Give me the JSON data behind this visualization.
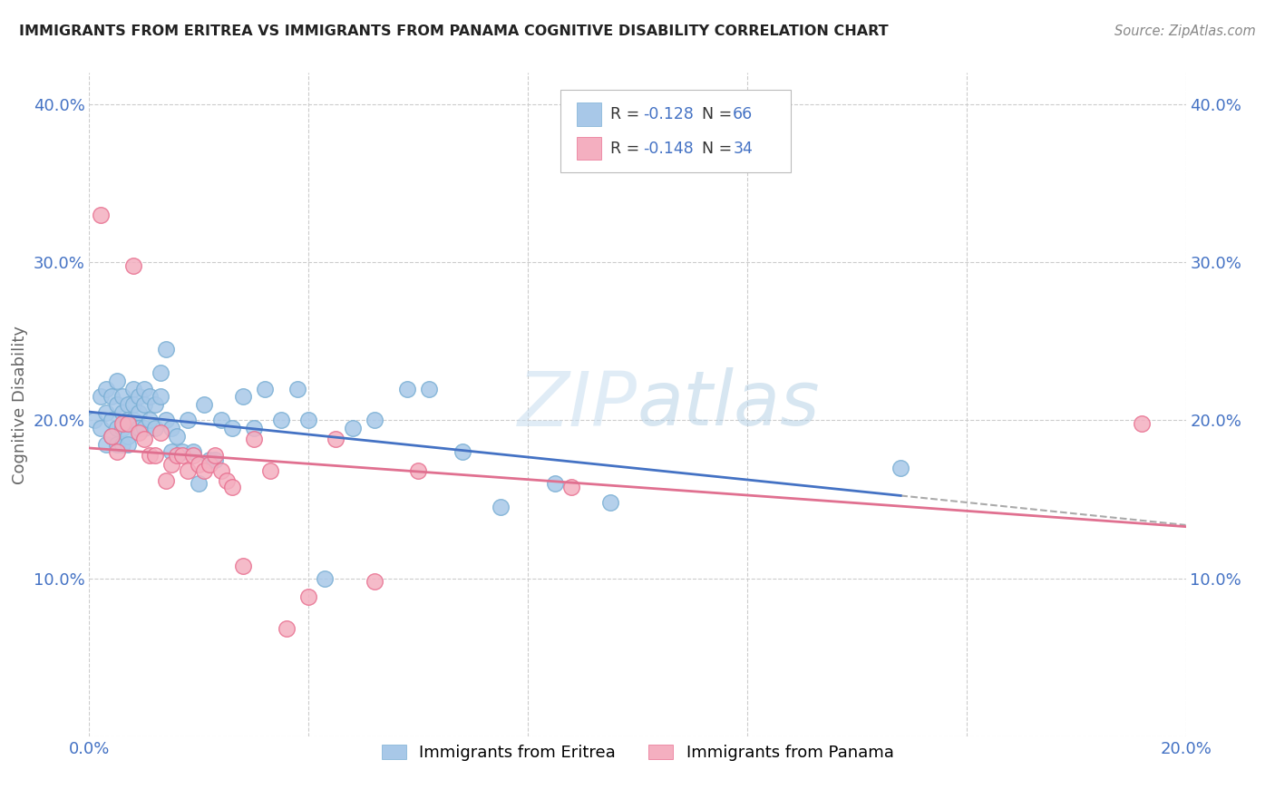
{
  "title": "IMMIGRANTS FROM ERITREA VS IMMIGRANTS FROM PANAMA COGNITIVE DISABILITY CORRELATION CHART",
  "source": "Source: ZipAtlas.com",
  "ylabel": "Cognitive Disability",
  "xlim": [
    0.0,
    0.2
  ],
  "ylim": [
    0.0,
    0.42
  ],
  "xticks": [
    0.0,
    0.04,
    0.08,
    0.12,
    0.16,
    0.2
  ],
  "yticks": [
    0.0,
    0.1,
    0.2,
    0.3,
    0.4
  ],
  "eritrea_color": "#a8c8e8",
  "eritrea_edge": "#7aafd4",
  "panama_color": "#f4afc0",
  "panama_edge": "#e87090",
  "eritrea_line_color": "#4472c4",
  "panama_line_color": "#e07090",
  "dashed_color": "#aaaaaa",
  "eritrea_R": -0.128,
  "eritrea_N": 66,
  "panama_R": -0.148,
  "panama_N": 34,
  "legend_color": "#4472c4",
  "watermark_color": "#d8eaf7",
  "grid_color": "#cccccc",
  "axis_label_color": "#4472c4",
  "background_color": "#ffffff",
  "eritrea_x": [
    0.001,
    0.002,
    0.002,
    0.003,
    0.003,
    0.003,
    0.004,
    0.004,
    0.004,
    0.005,
    0.005,
    0.005,
    0.005,
    0.006,
    0.006,
    0.006,
    0.006,
    0.007,
    0.007,
    0.007,
    0.007,
    0.008,
    0.008,
    0.008,
    0.009,
    0.009,
    0.009,
    0.01,
    0.01,
    0.01,
    0.011,
    0.011,
    0.012,
    0.012,
    0.013,
    0.013,
    0.014,
    0.014,
    0.015,
    0.015,
    0.016,
    0.017,
    0.018,
    0.019,
    0.02,
    0.021,
    0.022,
    0.023,
    0.024,
    0.026,
    0.028,
    0.03,
    0.032,
    0.035,
    0.038,
    0.04,
    0.043,
    0.048,
    0.052,
    0.058,
    0.062,
    0.068,
    0.075,
    0.085,
    0.095,
    0.148
  ],
  "eritrea_y": [
    0.2,
    0.215,
    0.195,
    0.22,
    0.205,
    0.185,
    0.215,
    0.2,
    0.19,
    0.225,
    0.21,
    0.195,
    0.185,
    0.215,
    0.205,
    0.195,
    0.185,
    0.21,
    0.2,
    0.19,
    0.185,
    0.22,
    0.21,
    0.2,
    0.215,
    0.205,
    0.195,
    0.22,
    0.21,
    0.195,
    0.215,
    0.2,
    0.21,
    0.195,
    0.23,
    0.215,
    0.245,
    0.2,
    0.195,
    0.18,
    0.19,
    0.18,
    0.2,
    0.18,
    0.16,
    0.21,
    0.175,
    0.175,
    0.2,
    0.195,
    0.215,
    0.195,
    0.22,
    0.2,
    0.22,
    0.2,
    0.1,
    0.195,
    0.2,
    0.22,
    0.22,
    0.18,
    0.145,
    0.16,
    0.148,
    0.17
  ],
  "panama_x": [
    0.002,
    0.004,
    0.005,
    0.006,
    0.007,
    0.008,
    0.009,
    0.01,
    0.011,
    0.012,
    0.013,
    0.014,
    0.015,
    0.016,
    0.017,
    0.018,
    0.019,
    0.02,
    0.021,
    0.022,
    0.023,
    0.024,
    0.025,
    0.026,
    0.028,
    0.03,
    0.033,
    0.036,
    0.04,
    0.045,
    0.052,
    0.06,
    0.088,
    0.192
  ],
  "panama_y": [
    0.33,
    0.19,
    0.18,
    0.198,
    0.198,
    0.298,
    0.192,
    0.188,
    0.178,
    0.178,
    0.192,
    0.162,
    0.172,
    0.178,
    0.178,
    0.168,
    0.178,
    0.172,
    0.168,
    0.172,
    0.178,
    0.168,
    0.162,
    0.158,
    0.108,
    0.188,
    0.168,
    0.068,
    0.088,
    0.188,
    0.098,
    0.168,
    0.158,
    0.198
  ]
}
